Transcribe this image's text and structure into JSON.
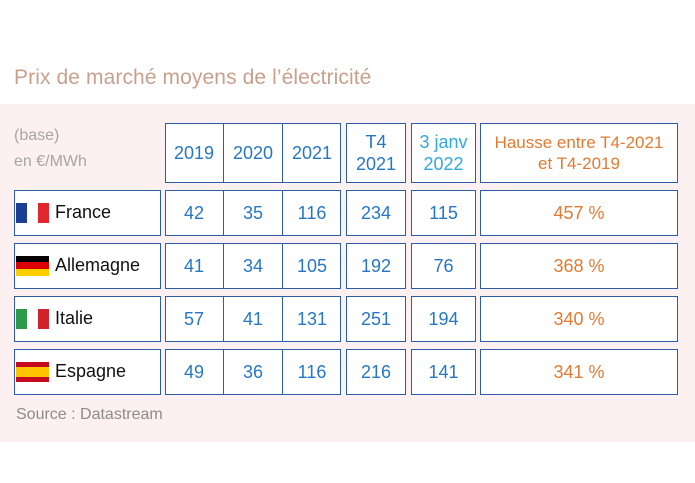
{
  "title": "Prix de marché moyens de l’électricité",
  "header": {
    "row_label_line1": "(base)",
    "row_label_line2": "en €/MWh",
    "year_2019": "2019",
    "year_2020": "2020",
    "year_2021": "2021",
    "t4_line1": "T4",
    "t4_line2": "2021",
    "janv_line1": "3 janv",
    "janv_line2": "2022",
    "hausse_line1": "Hausse entre T4-2021",
    "hausse_line2": "et T4-2019"
  },
  "rows": [
    {
      "country": "France",
      "y2019": "42",
      "y2020": "35",
      "y2021": "116",
      "t4_2021": "234",
      "janv_2022": "115",
      "hausse": "457 %",
      "flag_colors": [
        "#1c3f94",
        "#ffffff",
        "#e1262d"
      ],
      "flag_dir": "v"
    },
    {
      "country": "Allemagne",
      "y2019": "41",
      "y2020": "34",
      "y2021": "105",
      "t4_2021": "192",
      "janv_2022": "76",
      "hausse": "368 %",
      "flag_colors": [
        "#000000",
        "#dd0000",
        "#ffce00"
      ],
      "flag_dir": "h"
    },
    {
      "country": "Italie",
      "y2019": "57",
      "y2020": "41",
      "y2021": "131",
      "t4_2021": "251",
      "janv_2022": "194",
      "hausse": "340 %",
      "flag_colors": [
        "#2d9a48",
        "#ffffff",
        "#d2232a"
      ],
      "flag_dir": "v"
    },
    {
      "country": "Espagne",
      "y2019": "49",
      "y2020": "36",
      "y2021": "116",
      "t4_2021": "216",
      "janv_2022": "141",
      "hausse": "341 %",
      "flag_colors": [
        "#c60b1e",
        "#ffc400",
        "#c60b1e"
      ],
      "flag_dir": "h"
    }
  ],
  "source": "Source :  Datastream",
  "colors": {
    "border": "#2b5da8",
    "value": "#2677c4",
    "janv": "#2fa8e0",
    "hausse": "#e27a32",
    "panel": "#fdf0f0"
  },
  "chart_data": {
    "type": "table",
    "title": "Prix de marché moyens de l’électricité",
    "unit": "(base) en €/MWh",
    "columns": [
      "2019",
      "2020",
      "2021",
      "T4 2021",
      "3 janv 2022",
      "Hausse entre T4-2021 et T4-2019"
    ],
    "categories": [
      "France",
      "Allemagne",
      "Italie",
      "Espagne"
    ],
    "series": [
      {
        "name": "2019",
        "values": [
          42,
          41,
          57,
          49
        ]
      },
      {
        "name": "2020",
        "values": [
          35,
          34,
          41,
          36
        ]
      },
      {
        "name": "2021",
        "values": [
          116,
          105,
          131,
          116
        ]
      },
      {
        "name": "T4 2021",
        "values": [
          234,
          192,
          251,
          216
        ]
      },
      {
        "name": "3 janv 2022",
        "values": [
          115,
          76,
          194,
          141
        ]
      },
      {
        "name": "Hausse entre T4-2021 et T4-2019",
        "values": [
          "457 %",
          "368 %",
          "340 %",
          "341 %"
        ]
      }
    ],
    "source": "Source :  Datastream"
  }
}
